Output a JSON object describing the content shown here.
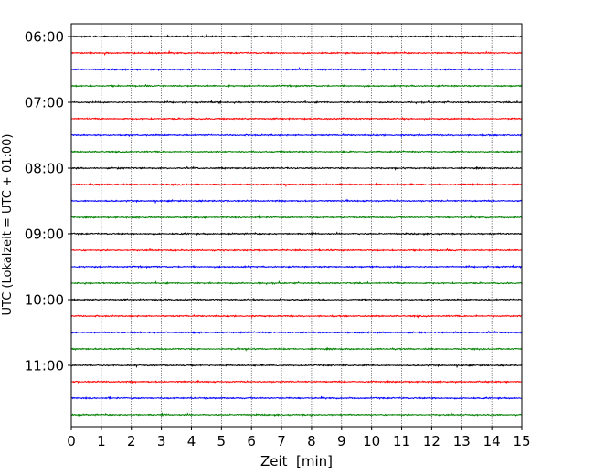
{
  "chart_data": {
    "type": "line",
    "title": "",
    "xlabel": "Zeit  [min]",
    "ylabel": "UTC (Lokalzeit = UTC + 01:00)",
    "xlim": [
      0,
      15
    ],
    "x_ticks": [
      "0",
      "1",
      "2",
      "3",
      "4",
      "5",
      "6",
      "7",
      "8",
      "9",
      "10",
      "11",
      "12",
      "13",
      "14",
      "15"
    ],
    "y_tick_labels": [
      "06:00",
      "07:00",
      "08:00",
      "09:00",
      "10:00",
      "11:00"
    ],
    "grid": "vertical dotted lines at each minute",
    "legend": "none",
    "trace_interval_minutes": 15,
    "start_time": "06:00",
    "rows": [
      {
        "time": "06:00",
        "color": "#000000"
      },
      {
        "time": "06:15",
        "color": "#ff0000"
      },
      {
        "time": "06:30",
        "color": "#0000ff"
      },
      {
        "time": "06:45",
        "color": "#008000"
      },
      {
        "time": "07:00",
        "color": "#000000"
      },
      {
        "time": "07:15",
        "color": "#ff0000"
      },
      {
        "time": "07:30",
        "color": "#0000ff"
      },
      {
        "time": "07:45",
        "color": "#008000"
      },
      {
        "time": "08:00",
        "color": "#000000"
      },
      {
        "time": "08:15",
        "color": "#ff0000"
      },
      {
        "time": "08:30",
        "color": "#0000ff"
      },
      {
        "time": "08:45",
        "color": "#008000"
      },
      {
        "time": "09:00",
        "color": "#000000"
      },
      {
        "time": "09:15",
        "color": "#ff0000"
      },
      {
        "time": "09:30",
        "color": "#0000ff"
      },
      {
        "time": "09:45",
        "color": "#008000"
      },
      {
        "time": "10:00",
        "color": "#000000"
      },
      {
        "time": "10:15",
        "color": "#ff0000"
      },
      {
        "time": "10:30",
        "color": "#0000ff"
      },
      {
        "time": "10:45",
        "color": "#008000"
      },
      {
        "time": "11:00",
        "color": "#000000"
      },
      {
        "time": "11:15",
        "color": "#ff0000"
      },
      {
        "time": "11:30",
        "color": "#0000ff"
      },
      {
        "time": "11:45",
        "color": "#008000"
      }
    ]
  }
}
